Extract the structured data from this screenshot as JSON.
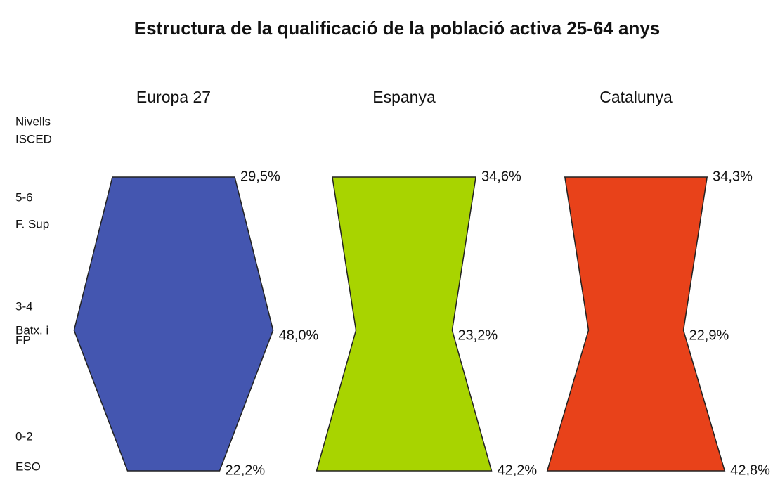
{
  "chart_data": {
    "type": "shape",
    "title": "Estructura de la qualificació de la població activa 25-64 anys",
    "level_title": [
      "Nivells",
      "ISCED"
    ],
    "levels": [
      [
        "5-6",
        "F. Sup"
      ],
      [
        "3-4",
        "Batx. i",
        "FP"
      ],
      [
        "0-2",
        "ESO"
      ]
    ],
    "series": [
      {
        "name": "Europa 27",
        "color": "#4456b0",
        "values": [
          29.5,
          48.0,
          22.2
        ],
        "value_labels": [
          "29,5%",
          "48,0%",
          "22,2%"
        ]
      },
      {
        "name": "Espanya",
        "color": "#a8d400",
        "values": [
          34.6,
          23.2,
          42.2
        ],
        "value_labels": [
          "34,6%",
          "23,2%",
          "42,2%"
        ]
      },
      {
        "name": "Catalunya",
        "color": "#e8421a",
        "values": [
          34.3,
          22.9,
          42.8
        ],
        "value_labels": [
          "34,3%",
          "22,9%",
          "42,8%"
        ]
      }
    ]
  }
}
